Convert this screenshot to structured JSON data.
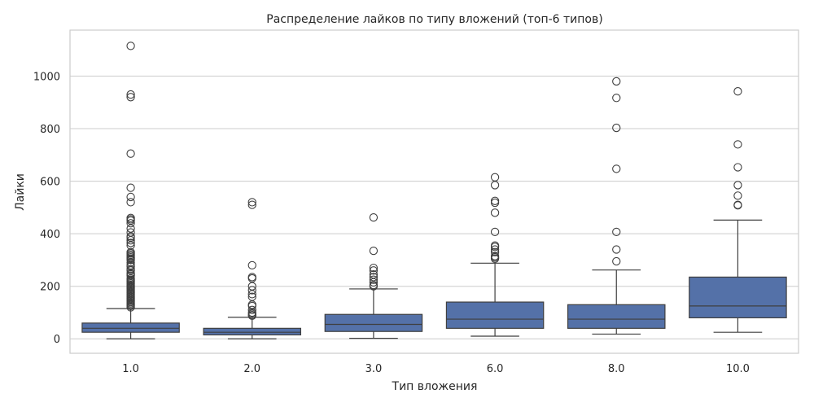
{
  "chart_data": {
    "type": "box",
    "title": "Распределение лайков по типу вложений (топ-6 типов)",
    "xlabel": "Тип вложения",
    "ylabel": "Лайки",
    "ylim": [
      -55,
      1175
    ],
    "yticks": [
      0,
      200,
      400,
      600,
      800,
      1000
    ],
    "grid": true,
    "box_color": "#5471a8",
    "line_color": "#3f3f3f",
    "categories": [
      "1.0",
      "2.0",
      "3.0",
      "6.0",
      "8.0",
      "10.0"
    ],
    "boxes": [
      {
        "category": "1.0",
        "whisker_low": 0,
        "q1": 25,
        "median": 40,
        "q3": 60,
        "whisker_high": 115,
        "outliers": [
          1115,
          930,
          920,
          705,
          575,
          540,
          520,
          460,
          455,
          450,
          440,
          420,
          405,
          390,
          385,
          375,
          365,
          355,
          330,
          325,
          320,
          315,
          310,
          305,
          300,
          290,
          280,
          275,
          265,
          260,
          250,
          245,
          240,
          230,
          225,
          220,
          215,
          210,
          205,
          200,
          195,
          190,
          185,
          180,
          175,
          170,
          165,
          160,
          155,
          150,
          145,
          140,
          135,
          130,
          125,
          120
        ]
      },
      {
        "category": "2.0",
        "whisker_low": 0,
        "q1": 15,
        "median": 25,
        "q3": 40,
        "whisker_high": 82,
        "outliers": [
          520,
          510,
          280,
          235,
          230,
          200,
          185,
          170,
          160,
          130,
          125,
          110,
          100,
          95,
          90,
          88
        ]
      },
      {
        "category": "3.0",
        "whisker_low": 2,
        "q1": 28,
        "median": 55,
        "q3": 93,
        "whisker_high": 190,
        "outliers": [
          462,
          335,
          270,
          260,
          245,
          235,
          225,
          215,
          205,
          200
        ]
      },
      {
        "category": "6.0",
        "whisker_low": 10,
        "q1": 40,
        "median": 75,
        "q3": 140,
        "whisker_high": 288,
        "outliers": [
          615,
          585,
          525,
          518,
          480,
          407,
          355,
          350,
          340,
          330,
          315,
          310,
          305
        ]
      },
      {
        "category": "8.0",
        "whisker_low": 18,
        "q1": 40,
        "median": 75,
        "q3": 130,
        "whisker_high": 262,
        "outliers": [
          980,
          917,
          803,
          647,
          407,
          340,
          295
        ]
      },
      {
        "category": "10.0",
        "whisker_low": 25,
        "q1": 80,
        "median": 125,
        "q3": 235,
        "whisker_high": 452,
        "outliers": [
          942,
          740,
          653,
          585,
          545,
          510,
          508
        ]
      }
    ]
  }
}
